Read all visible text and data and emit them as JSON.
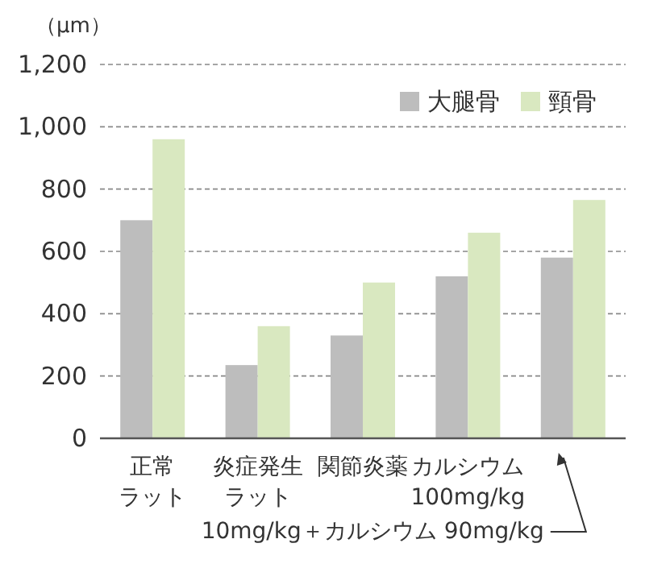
{
  "chart_data": {
    "type": "bar",
    "ylabel": "（μm）",
    "categories": [
      "正常ラット",
      "炎症発生ラット",
      "関節炎薬",
      "カルシウム100mg/kg",
      null
    ],
    "series": [
      {
        "name": "大腿骨",
        "color": "#bdbdbd",
        "values": [
          700,
          235,
          330,
          520,
          580
        ]
      },
      {
        "name": "頸骨",
        "color": "#d9e8c0",
        "values": [
          960,
          360,
          500,
          660,
          765
        ]
      }
    ],
    "ylim": [
      0,
      1200
    ],
    "yticks": [
      0,
      200,
      400,
      600,
      800,
      {
        "value": 1000,
        "label": "1,000"
      },
      {
        "value": 1200,
        "label": "1,200"
      }
    ],
    "grid": "y",
    "legend": "top right",
    "annotations": [
      "10mg/kg＋カルシウム 90mg/kg"
    ]
  }
}
